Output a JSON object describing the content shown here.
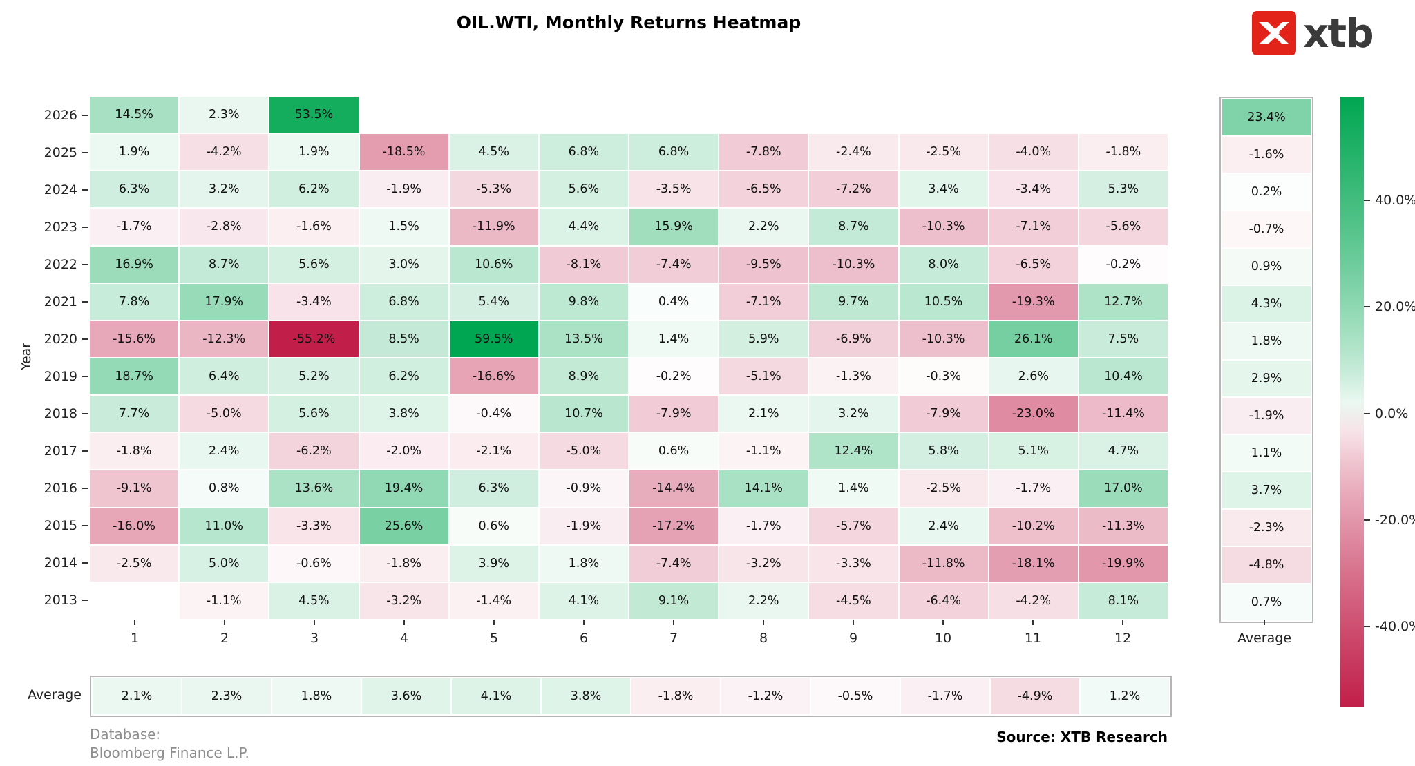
{
  "branding": {
    "logo_text": "xtb",
    "logo_color": "#e2231a"
  },
  "footer": {
    "database_line1": "Database:",
    "database_line2": "Bloomberg Finance L.P.",
    "source": "Source: XTB Research"
  },
  "chart_data": {
    "type": "heatmap",
    "title": "OIL.WTI, Monthly Returns Heatmap",
    "ylabel": "Year",
    "xlabel": "",
    "average_label": "Average",
    "columns": [
      "1",
      "2",
      "3",
      "4",
      "5",
      "6",
      "7",
      "8",
      "9",
      "10",
      "11",
      "12"
    ],
    "years": [
      "2026",
      "2025",
      "2024",
      "2023",
      "2022",
      "2021",
      "2020",
      "2019",
      "2018",
      "2017",
      "2016",
      "2015",
      "2014",
      "2013"
    ],
    "values_pct": [
      [
        14.5,
        2.3,
        53.5,
        null,
        null,
        null,
        null,
        null,
        null,
        null,
        null,
        null
      ],
      [
        1.9,
        -4.2,
        1.9,
        -18.5,
        4.5,
        6.8,
        6.8,
        -7.8,
        -2.4,
        -2.5,
        -4.0,
        -1.8
      ],
      [
        6.3,
        3.2,
        6.2,
        -1.9,
        -5.3,
        5.6,
        -3.5,
        -6.5,
        -7.2,
        3.4,
        -3.4,
        5.3
      ],
      [
        -1.7,
        -2.8,
        -1.6,
        1.5,
        -11.9,
        4.4,
        15.9,
        2.2,
        8.7,
        -10.3,
        -7.1,
        -5.6
      ],
      [
        16.9,
        8.7,
        5.6,
        3.0,
        10.6,
        -8.1,
        -7.4,
        -9.5,
        -10.3,
        8.0,
        -6.5,
        -0.2
      ],
      [
        7.8,
        17.9,
        -3.4,
        6.8,
        5.4,
        9.8,
        0.4,
        -7.1,
        9.7,
        10.5,
        -19.3,
        12.7
      ],
      [
        -15.6,
        -12.3,
        -55.2,
        8.5,
        59.5,
        13.5,
        1.4,
        5.9,
        -6.9,
        -10.3,
        26.1,
        7.5
      ],
      [
        18.7,
        6.4,
        5.2,
        6.2,
        -16.6,
        8.9,
        -0.2,
        -5.1,
        -1.3,
        -0.3,
        2.6,
        10.4
      ],
      [
        7.7,
        -5.0,
        5.6,
        3.8,
        -0.4,
        10.7,
        -7.9,
        2.1,
        3.2,
        -7.9,
        -23.0,
        -11.4
      ],
      [
        -1.8,
        2.4,
        -6.2,
        -2.0,
        -2.1,
        -5.0,
        0.6,
        -1.1,
        12.4,
        5.8,
        5.1,
        4.7
      ],
      [
        -9.1,
        0.8,
        13.6,
        19.4,
        6.3,
        -0.9,
        -14.4,
        14.1,
        1.4,
        -2.5,
        -1.7,
        17.0
      ],
      [
        -16.0,
        11.0,
        -3.3,
        25.6,
        0.6,
        -1.9,
        -17.2,
        -1.7,
        -5.7,
        2.4,
        -10.2,
        -11.3
      ],
      [
        -2.5,
        5.0,
        -0.6,
        -1.8,
        3.9,
        1.8,
        -7.4,
        -3.2,
        -3.3,
        -11.8,
        -18.1,
        -19.9
      ],
      [
        null,
        -1.1,
        4.5,
        -3.2,
        -1.4,
        4.1,
        9.1,
        2.2,
        -4.5,
        -6.4,
        -4.2,
        8.1
      ]
    ],
    "row_averages_pct": [
      23.4,
      -1.6,
      0.2,
      -0.7,
      0.9,
      4.3,
      1.8,
      2.9,
      -1.9,
      1.1,
      3.7,
      -2.3,
      -4.8,
      0.7
    ],
    "col_averages_pct": [
      2.1,
      2.3,
      1.8,
      3.6,
      4.1,
      3.8,
      -1.8,
      -1.2,
      -0.5,
      -1.7,
      -4.9,
      1.2
    ],
    "colorbar": {
      "vmax": 59.5,
      "vmin": -55.2,
      "ticks": [
        {
          "label": "40.0%",
          "value": 40
        },
        {
          "label": "20.0%",
          "value": 20
        },
        {
          "label": "0.0%",
          "value": 0
        },
        {
          "label": "-20.0%",
          "value": -20
        },
        {
          "label": "-40.0%",
          "value": -40
        }
      ]
    },
    "colors": {
      "positive_max": "#00a651",
      "negative_max": "#c11f4a",
      "mid": "#ffffff"
    }
  }
}
